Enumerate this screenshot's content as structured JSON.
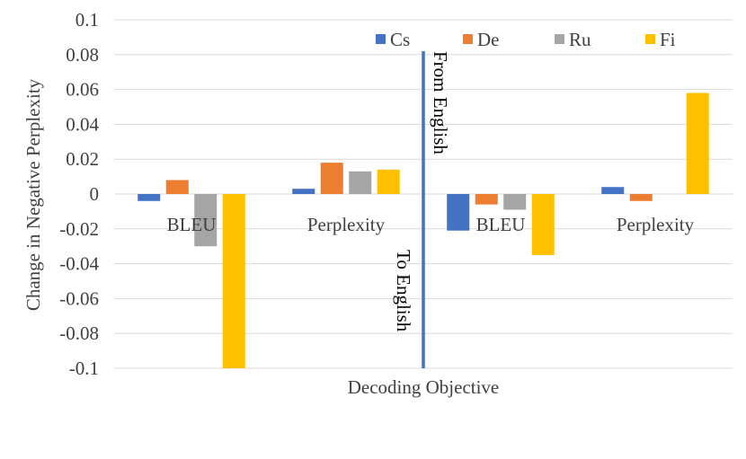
{
  "chart_data": {
    "type": "bar",
    "title": "",
    "xlabel": "Decoding Objective",
    "ylabel": "Change in Negative Perplexity",
    "ylim": [
      -0.1,
      0.1
    ],
    "yticks": [
      0.1,
      0.08,
      0.06,
      0.04,
      0.02,
      0,
      -0.02,
      -0.04,
      -0.06,
      -0.08,
      -0.1
    ],
    "ytick_labels": [
      "0.1",
      "0.08",
      "0.06",
      "0.04",
      "0.02",
      "0",
      "-0.02",
      "-0.04",
      "-0.06",
      "-0.08",
      "-0.1"
    ],
    "grid": true,
    "legend_position": "top-right",
    "categories": [
      "BLEU",
      "Perplexity",
      "BLEU",
      "Perplexity"
    ],
    "series": [
      {
        "name": "Cs",
        "color": "#4472C4",
        "values": [
          -0.004,
          0.003,
          -0.021,
          0.004
        ]
      },
      {
        "name": "De",
        "color": "#ED7D31",
        "values": [
          0.008,
          0.018,
          -0.006,
          -0.004
        ]
      },
      {
        "name": "Ru",
        "color": "#A5A5A5",
        "values": [
          -0.03,
          0.013,
          -0.009,
          0.0
        ]
      },
      {
        "name": "Fi",
        "color": "#FFC000",
        "values": [
          -0.1,
          0.014,
          -0.035,
          0.058
        ]
      }
    ],
    "annotations": {
      "divider_color": "#4472C4",
      "left_group": "To English",
      "right_group": "From English"
    }
  }
}
